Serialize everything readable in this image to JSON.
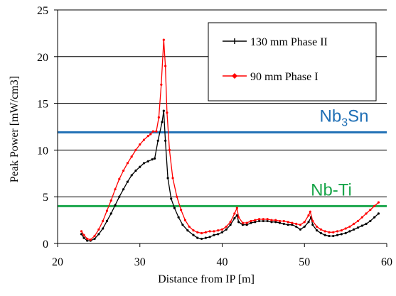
{
  "chart_data": {
    "type": "line",
    "title": "",
    "xlabel": "Distance from IP [m]",
    "ylabel": "Peak Power [mW/cm3]",
    "xlim": [
      20,
      60
    ],
    "ylim": [
      0,
      25
    ],
    "x_ticks": [
      "20",
      "30",
      "40",
      "50",
      "60"
    ],
    "y_ticks": [
      "0",
      "5",
      "10",
      "15",
      "20",
      "25"
    ],
    "grid": "horizontal",
    "legend_placement": "top-right",
    "series": [
      {
        "name": "130 mm Phase II",
        "color": "#000000",
        "points": [
          [
            22.9,
            1.0
          ],
          [
            23.2,
            0.6
          ],
          [
            23.6,
            0.3
          ],
          [
            24.0,
            0.3
          ],
          [
            24.5,
            0.5
          ],
          [
            25.0,
            1.0
          ],
          [
            25.5,
            1.6
          ],
          [
            26.0,
            2.4
          ],
          [
            26.5,
            3.2
          ],
          [
            27.0,
            4.1
          ],
          [
            27.5,
            5.0
          ],
          [
            28.0,
            5.8
          ],
          [
            28.5,
            6.6
          ],
          [
            29.0,
            7.3
          ],
          [
            29.5,
            7.8
          ],
          [
            30.0,
            8.2
          ],
          [
            30.5,
            8.6
          ],
          [
            31.0,
            8.8
          ],
          [
            31.5,
            9.0
          ],
          [
            31.8,
            9.1
          ],
          [
            32.2,
            11.0
          ],
          [
            32.7,
            13.0
          ],
          [
            32.9,
            14.2
          ],
          [
            33.1,
            11.0
          ],
          [
            33.4,
            7.0
          ],
          [
            33.8,
            4.8
          ],
          [
            34.2,
            3.8
          ],
          [
            34.7,
            2.8
          ],
          [
            35.2,
            2.0
          ],
          [
            35.8,
            1.4
          ],
          [
            36.5,
            0.9
          ],
          [
            37.0,
            0.6
          ],
          [
            37.5,
            0.5
          ],
          [
            38.0,
            0.6
          ],
          [
            38.5,
            0.7
          ],
          [
            39.0,
            0.9
          ],
          [
            39.5,
            1.0
          ],
          [
            40.0,
            1.2
          ],
          [
            40.5,
            1.5
          ],
          [
            41.0,
            2.0
          ],
          [
            41.5,
            2.7
          ],
          [
            41.8,
            3.0
          ],
          [
            42.0,
            2.3
          ],
          [
            42.5,
            2.0
          ],
          [
            43.0,
            2.0
          ],
          [
            43.5,
            2.2
          ],
          [
            44.0,
            2.3
          ],
          [
            44.5,
            2.4
          ],
          [
            45.0,
            2.4
          ],
          [
            45.5,
            2.4
          ],
          [
            46.0,
            2.3
          ],
          [
            46.5,
            2.3
          ],
          [
            47.0,
            2.2
          ],
          [
            47.5,
            2.1
          ],
          [
            48.0,
            2.0
          ],
          [
            48.5,
            2.0
          ],
          [
            49.0,
            1.8
          ],
          [
            49.5,
            1.5
          ],
          [
            50.0,
            1.8
          ],
          [
            50.5,
            2.3
          ],
          [
            50.8,
            2.8
          ],
          [
            51.0,
            2.0
          ],
          [
            51.5,
            1.4
          ],
          [
            52.0,
            1.1
          ],
          [
            52.5,
            0.9
          ],
          [
            53.0,
            0.8
          ],
          [
            53.5,
            0.8
          ],
          [
            54.0,
            0.9
          ],
          [
            54.5,
            1.0
          ],
          [
            55.0,
            1.1
          ],
          [
            55.5,
            1.3
          ],
          [
            56.0,
            1.5
          ],
          [
            56.5,
            1.7
          ],
          [
            57.0,
            1.9
          ],
          [
            57.5,
            2.1
          ],
          [
            58.0,
            2.4
          ],
          [
            58.5,
            2.8
          ],
          [
            59.0,
            3.2
          ]
        ]
      },
      {
        "name": "90 mm Phase I",
        "color": "#ff0000",
        "points": [
          [
            22.9,
            1.3
          ],
          [
            23.2,
            0.9
          ],
          [
            23.6,
            0.5
          ],
          [
            24.0,
            0.4
          ],
          [
            24.5,
            0.8
          ],
          [
            25.0,
            1.5
          ],
          [
            25.5,
            2.4
          ],
          [
            26.0,
            3.5
          ],
          [
            26.5,
            4.6
          ],
          [
            27.0,
            5.8
          ],
          [
            27.5,
            6.9
          ],
          [
            28.0,
            7.8
          ],
          [
            28.5,
            8.6
          ],
          [
            29.0,
            9.3
          ],
          [
            29.5,
            10.0
          ],
          [
            30.0,
            10.6
          ],
          [
            30.5,
            11.1
          ],
          [
            31.0,
            11.5
          ],
          [
            31.3,
            11.7
          ],
          [
            31.6,
            12.0
          ],
          [
            32.0,
            12.0
          ],
          [
            32.3,
            13.5
          ],
          [
            32.6,
            17.0
          ],
          [
            32.9,
            21.8
          ],
          [
            33.1,
            19.0
          ],
          [
            33.3,
            14.0
          ],
          [
            33.6,
            10.0
          ],
          [
            34.0,
            7.0
          ],
          [
            34.5,
            5.0
          ],
          [
            35.0,
            3.6
          ],
          [
            35.5,
            2.5
          ],
          [
            36.0,
            1.8
          ],
          [
            36.5,
            1.4
          ],
          [
            37.0,
            1.2
          ],
          [
            37.5,
            1.1
          ],
          [
            38.0,
            1.2
          ],
          [
            38.5,
            1.3
          ],
          [
            39.0,
            1.3
          ],
          [
            39.5,
            1.4
          ],
          [
            40.0,
            1.5
          ],
          [
            40.5,
            1.8
          ],
          [
            41.0,
            2.3
          ],
          [
            41.5,
            3.2
          ],
          [
            41.8,
            3.8
          ],
          [
            42.0,
            2.8
          ],
          [
            42.5,
            2.2
          ],
          [
            43.0,
            2.2
          ],
          [
            43.5,
            2.4
          ],
          [
            44.0,
            2.5
          ],
          [
            44.5,
            2.6
          ],
          [
            45.0,
            2.6
          ],
          [
            45.5,
            2.6
          ],
          [
            46.0,
            2.5
          ],
          [
            46.5,
            2.5
          ],
          [
            47.0,
            2.4
          ],
          [
            47.5,
            2.4
          ],
          [
            48.0,
            2.3
          ],
          [
            48.5,
            2.2
          ],
          [
            49.0,
            2.1
          ],
          [
            49.5,
            2.0
          ],
          [
            50.0,
            2.3
          ],
          [
            50.5,
            3.0
          ],
          [
            50.7,
            3.4
          ],
          [
            51.0,
            2.4
          ],
          [
            51.5,
            1.8
          ],
          [
            52.0,
            1.5
          ],
          [
            52.5,
            1.3
          ],
          [
            53.0,
            1.2
          ],
          [
            53.5,
            1.2
          ],
          [
            54.0,
            1.3
          ],
          [
            54.5,
            1.4
          ],
          [
            55.0,
            1.6
          ],
          [
            55.5,
            1.8
          ],
          [
            56.0,
            2.1
          ],
          [
            56.5,
            2.4
          ],
          [
            57.0,
            2.8
          ],
          [
            57.5,
            3.2
          ],
          [
            58.0,
            3.6
          ],
          [
            58.5,
            4.0
          ],
          [
            59.0,
            4.4
          ]
        ]
      }
    ],
    "reference_lines": [
      {
        "label_main": "Nb",
        "label_sub": "3",
        "label_tail": "Sn",
        "y": 11.9,
        "color": "#1f6fb5"
      },
      {
        "label_main": "Nb-Ti",
        "label_sub": "",
        "label_tail": "",
        "y": 4.0,
        "color": "#1aa64b"
      }
    ]
  }
}
